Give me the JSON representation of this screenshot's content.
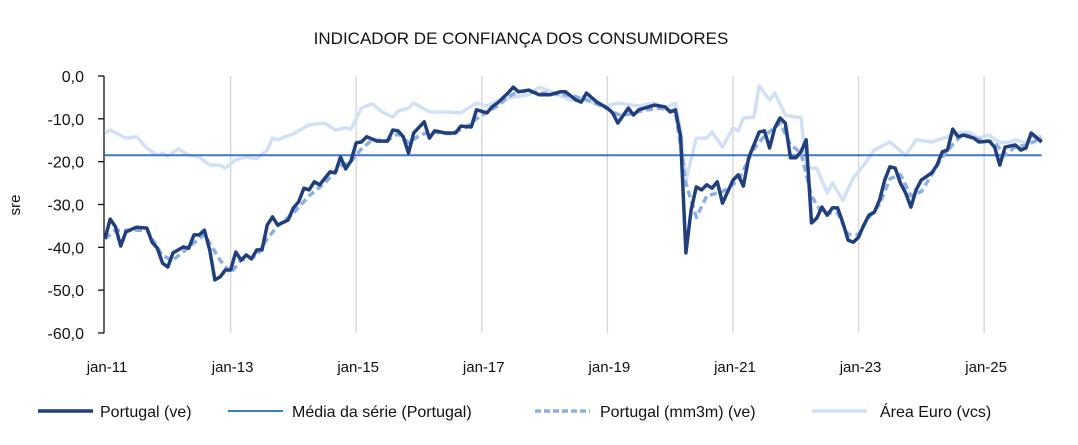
{
  "chart_data": {
    "type": "line",
    "title": "INDICADOR DE CONFIANÇA DOS CONSUMIDORES",
    "xlabel": "",
    "ylabel": "sre",
    "x_unit": "months since jan-11",
    "ylim": [
      -60,
      0
    ],
    "yticks": [
      0,
      -10,
      -20,
      -30,
      -40,
      -50,
      -60
    ],
    "ytick_labels": [
      "0,0",
      "-10,0",
      "-20,0",
      "-30,0",
      "-40,0",
      "-50,0",
      "-60,0"
    ],
    "xticks": [
      0,
      24,
      48,
      72,
      96,
      120,
      144,
      168
    ],
    "xtick_labels": [
      "jan-11",
      "jan-13",
      "jan-15",
      "jan-17",
      "jan-19",
      "jan-21",
      "jan-23",
      "jan-25"
    ],
    "xlim": [
      0,
      179
    ],
    "grid": "vertical",
    "legend_position": "bottom",
    "colors": {
      "portugal": "#1f3f7f",
      "mean": "#3b78d2",
      "mm3m": "#8eafe2",
      "euro": "#d2e0f6",
      "grid": "#d9d9d9"
    },
    "series": [
      {
        "name": "Portugal (ve)",
        "style": "solid-thick",
        "points": [
          [
            0,
            -38
          ],
          [
            1,
            -33.4
          ],
          [
            2,
            -35.2
          ],
          [
            3,
            -39.7
          ],
          [
            4,
            -36.4
          ],
          [
            6,
            -35.3
          ],
          [
            8,
            -35.5
          ],
          [
            9,
            -38.8
          ],
          [
            10,
            -40.2
          ],
          [
            11,
            -43.7
          ],
          [
            12,
            -44.6
          ],
          [
            13,
            -41.3
          ],
          [
            15,
            -39.9
          ],
          [
            16,
            -40.2
          ],
          [
            17,
            -37.1
          ],
          [
            18,
            -37.1
          ],
          [
            19,
            -36
          ],
          [
            20,
            -40.6
          ],
          [
            21,
            -47.6
          ],
          [
            22,
            -46.9
          ],
          [
            23,
            -45.3
          ],
          [
            24,
            -45.3
          ],
          [
            25,
            -41.1
          ],
          [
            26,
            -43
          ],
          [
            27,
            -41.8
          ],
          [
            28,
            -42.7
          ],
          [
            29,
            -40.6
          ],
          [
            30,
            -40.6
          ],
          [
            31,
            -34.8
          ],
          [
            32,
            -32.9
          ],
          [
            33,
            -34.8
          ],
          [
            35,
            -33.6
          ],
          [
            36,
            -30.8
          ],
          [
            37,
            -29.4
          ],
          [
            38,
            -26.2
          ],
          [
            39,
            -26.6
          ],
          [
            40,
            -24.7
          ],
          [
            41,
            -25.4
          ],
          [
            43,
            -22.4
          ],
          [
            44,
            -22.6
          ],
          [
            45,
            -18.9
          ],
          [
            46,
            -21.7
          ],
          [
            47,
            -19.8
          ],
          [
            48,
            -15.6
          ],
          [
            49,
            -15.4
          ],
          [
            50,
            -14.2
          ],
          [
            52,
            -15.2
          ],
          [
            54,
            -15.2
          ],
          [
            55,
            -12.6
          ],
          [
            56,
            -12.8
          ],
          [
            57,
            -14.2
          ],
          [
            58,
            -18
          ],
          [
            59,
            -13.3
          ],
          [
            61,
            -10.7
          ],
          [
            62,
            -14.5
          ],
          [
            63,
            -12.8
          ],
          [
            65,
            -13.3
          ],
          [
            67,
            -13.3
          ],
          [
            68,
            -11.7
          ],
          [
            70,
            -11.9
          ],
          [
            71,
            -7.9
          ],
          [
            73,
            -8.6
          ],
          [
            74,
            -7.2
          ],
          [
            75,
            -6.3
          ],
          [
            77,
            -4
          ],
          [
            78,
            -2.6
          ],
          [
            79,
            -3.7
          ],
          [
            81,
            -3.3
          ],
          [
            83,
            -4.4
          ],
          [
            85,
            -4.4
          ],
          [
            87,
            -3.7
          ],
          [
            88,
            -3.7
          ],
          [
            90,
            -5.6
          ],
          [
            91,
            -6.1
          ],
          [
            92,
            -4
          ],
          [
            94,
            -6.1
          ],
          [
            96,
            -7.5
          ],
          [
            97,
            -8.6
          ],
          [
            98,
            -11
          ],
          [
            100,
            -7.5
          ],
          [
            101,
            -9.1
          ],
          [
            102,
            -7.9
          ],
          [
            105,
            -6.8
          ],
          [
            107,
            -7.2
          ],
          [
            108,
            -8.4
          ],
          [
            109,
            -7.9
          ],
          [
            110,
            -14.2
          ],
          [
            111,
            -41.3
          ],
          [
            112,
            -31.3
          ],
          [
            113,
            -25.9
          ],
          [
            114,
            -26.6
          ],
          [
            115,
            -25.4
          ],
          [
            116,
            -26.2
          ],
          [
            117,
            -24.7
          ],
          [
            118,
            -29.7
          ],
          [
            120,
            -24.3
          ],
          [
            121,
            -23.1
          ],
          [
            122,
            -25.7
          ],
          [
            123,
            -19.1
          ],
          [
            125,
            -13.1
          ],
          [
            126,
            -12.8
          ],
          [
            127,
            -16.8
          ],
          [
            128,
            -12.1
          ],
          [
            129,
            -9.8
          ],
          [
            130,
            -11
          ],
          [
            131,
            -19.1
          ],
          [
            132,
            -19.1
          ],
          [
            133,
            -17.7
          ],
          [
            134,
            -14.9
          ],
          [
            135,
            -34.3
          ],
          [
            136,
            -33.2
          ],
          [
            137,
            -30.6
          ],
          [
            138,
            -32.5
          ],
          [
            139,
            -30.8
          ],
          [
            140,
            -30.8
          ],
          [
            141,
            -34.3
          ],
          [
            142,
            -38.3
          ],
          [
            143,
            -38.8
          ],
          [
            144,
            -37.6
          ],
          [
            145,
            -34.8
          ],
          [
            146,
            -32.5
          ],
          [
            147,
            -31.8
          ],
          [
            148,
            -29
          ],
          [
            149,
            -24.3
          ],
          [
            150,
            -21.2
          ],
          [
            151,
            -21.5
          ],
          [
            152,
            -25
          ],
          [
            153,
            -27.3
          ],
          [
            154,
            -30.6
          ],
          [
            155,
            -26.6
          ],
          [
            156,
            -24.3
          ],
          [
            158,
            -22.6
          ],
          [
            159,
            -20.8
          ],
          [
            160,
            -17.7
          ],
          [
            161,
            -17.3
          ],
          [
            162,
            -12.4
          ],
          [
            163,
            -14.2
          ],
          [
            164,
            -13.8
          ],
          [
            166,
            -14.5
          ],
          [
            167,
            -15.4
          ],
          [
            169,
            -15.2
          ],
          [
            170,
            -16.6
          ],
          [
            171,
            -20.8
          ],
          [
            172,
            -16.6
          ],
          [
            174,
            -16.1
          ],
          [
            175,
            -17.3
          ],
          [
            176,
            -16.8
          ],
          [
            177,
            -13.3
          ],
          [
            179,
            -15.4
          ]
        ]
      },
      {
        "name": "Média da série (Portugal)",
        "style": "solid-thin",
        "constant": -18.5
      },
      {
        "name": "Portugal (mm3m) (ve)",
        "style": "dashed",
        "points": [
          [
            0,
            -38
          ],
          [
            2,
            -36
          ],
          [
            5,
            -36
          ],
          [
            8,
            -36
          ],
          [
            11,
            -42
          ],
          [
            13,
            -43
          ],
          [
            16,
            -40
          ],
          [
            19,
            -37
          ],
          [
            22,
            -43
          ],
          [
            24,
            -46
          ],
          [
            26,
            -43
          ],
          [
            29,
            -42
          ],
          [
            31,
            -38
          ],
          [
            33,
            -35
          ],
          [
            36,
            -32
          ],
          [
            39,
            -28
          ],
          [
            42,
            -25
          ],
          [
            45,
            -21
          ],
          [
            47,
            -20
          ],
          [
            49,
            -17
          ],
          [
            51,
            -15
          ],
          [
            54,
            -15
          ],
          [
            56,
            -13.5
          ],
          [
            58,
            -15.5
          ],
          [
            60,
            -14
          ],
          [
            62,
            -13
          ],
          [
            66,
            -13.5
          ],
          [
            69,
            -12
          ],
          [
            71,
            -10
          ],
          [
            73,
            -8.5
          ],
          [
            75,
            -7
          ],
          [
            77,
            -5
          ],
          [
            79,
            -3.5
          ],
          [
            82,
            -3.8
          ],
          [
            86,
            -4.2
          ],
          [
            89,
            -4.5
          ],
          [
            92,
            -5.5
          ],
          [
            95,
            -7
          ],
          [
            98,
            -9
          ],
          [
            100,
            -9
          ],
          [
            103,
            -8
          ],
          [
            106,
            -7.5
          ],
          [
            109,
            -8.3
          ],
          [
            111,
            -25
          ],
          [
            113,
            -33
          ],
          [
            115,
            -28
          ],
          [
            118,
            -27
          ],
          [
            121,
            -24.5
          ],
          [
            124,
            -17
          ],
          [
            126,
            -14
          ],
          [
            129,
            -11
          ],
          [
            131,
            -16
          ],
          [
            133,
            -18
          ],
          [
            135,
            -28
          ],
          [
            137,
            -32
          ],
          [
            140,
            -32
          ],
          [
            142,
            -37
          ],
          [
            144,
            -37
          ],
          [
            146,
            -33
          ],
          [
            148,
            -30
          ],
          [
            150,
            -24
          ],
          [
            152,
            -23
          ],
          [
            154,
            -28
          ],
          [
            156,
            -27
          ],
          [
            158,
            -23
          ],
          [
            160,
            -19
          ],
          [
            162,
            -16
          ],
          [
            164,
            -13.5
          ],
          [
            167,
            -14.8
          ],
          [
            170,
            -15.5
          ],
          [
            172,
            -18.5
          ],
          [
            174,
            -16.5
          ],
          [
            176,
            -16.2
          ],
          [
            179,
            -14.5
          ]
        ]
      },
      {
        "name": "Área Euro (vcs)",
        "style": "solid-light",
        "points": [
          [
            0,
            -13.3
          ],
          [
            1,
            -12.6
          ],
          [
            4,
            -14.5
          ],
          [
            6,
            -14.2
          ],
          [
            8,
            -16.8
          ],
          [
            10,
            -18.5
          ],
          [
            11,
            -18
          ],
          [
            12,
            -18.7
          ],
          [
            14,
            -17
          ],
          [
            16,
            -18.5
          ],
          [
            18,
            -18.9
          ],
          [
            20,
            -20.8
          ],
          [
            22,
            -20.8
          ],
          [
            23,
            -21.5
          ],
          [
            25,
            -19.6
          ],
          [
            27,
            -18.9
          ],
          [
            29,
            -19.3
          ],
          [
            31,
            -17.3
          ],
          [
            32,
            -14.5
          ],
          [
            33,
            -14.9
          ],
          [
            36,
            -13.5
          ],
          [
            39,
            -11.4
          ],
          [
            42,
            -11
          ],
          [
            44,
            -12.6
          ],
          [
            46,
            -12.1
          ],
          [
            47,
            -12.4
          ],
          [
            49,
            -7.5
          ],
          [
            51,
            -6.5
          ],
          [
            53,
            -8.4
          ],
          [
            55,
            -9.6
          ],
          [
            56,
            -8.2
          ],
          [
            58,
            -7.5
          ],
          [
            59,
            -6.3
          ],
          [
            62,
            -8.4
          ],
          [
            65,
            -8.4
          ],
          [
            68,
            -8.6
          ],
          [
            71,
            -6.3
          ],
          [
            73,
            -7
          ],
          [
            75,
            -5.8
          ],
          [
            78,
            -4.9
          ],
          [
            81,
            -4.4
          ],
          [
            83,
            -2.6
          ],
          [
            86,
            -4
          ],
          [
            89,
            -5.6
          ],
          [
            92,
            -5.6
          ],
          [
            95,
            -7.2
          ],
          [
            98,
            -6.3
          ],
          [
            102,
            -7
          ],
          [
            105,
            -6.3
          ],
          [
            107,
            -7.5
          ],
          [
            109,
            -6.3
          ],
          [
            110,
            -12.6
          ],
          [
            111,
            -24.3
          ],
          [
            113,
            -14.5
          ],
          [
            115,
            -14.5
          ],
          [
            116,
            -13.1
          ],
          [
            118,
            -16.6
          ],
          [
            120,
            -12.1
          ],
          [
            121,
            -12.8
          ],
          [
            122,
            -9.8
          ],
          [
            124,
            -9.6
          ],
          [
            125,
            -2.3
          ],
          [
            127,
            -5.6
          ],
          [
            128,
            -4
          ],
          [
            130,
            -9.1
          ],
          [
            132,
            -9.6
          ],
          [
            133,
            -9.6
          ],
          [
            134,
            -21.5
          ],
          [
            136,
            -21.5
          ],
          [
            138,
            -27.3
          ],
          [
            139,
            -25
          ],
          [
            141,
            -29
          ],
          [
            143,
            -23.8
          ],
          [
            145,
            -20.8
          ],
          [
            147,
            -17.3
          ],
          [
            150,
            -15.4
          ],
          [
            153,
            -18.5
          ],
          [
            155,
            -14.9
          ],
          [
            158,
            -15.4
          ],
          [
            161,
            -14.2
          ],
          [
            163,
            -13.3
          ],
          [
            165,
            -13.1
          ],
          [
            167,
            -14.5
          ],
          [
            169,
            -13.8
          ],
          [
            171,
            -15.6
          ],
          [
            173,
            -15.4
          ],
          [
            174,
            -14.9
          ],
          [
            176,
            -15.6
          ],
          [
            177,
            -14.2
          ],
          [
            179,
            -14.2
          ]
        ]
      }
    ]
  }
}
